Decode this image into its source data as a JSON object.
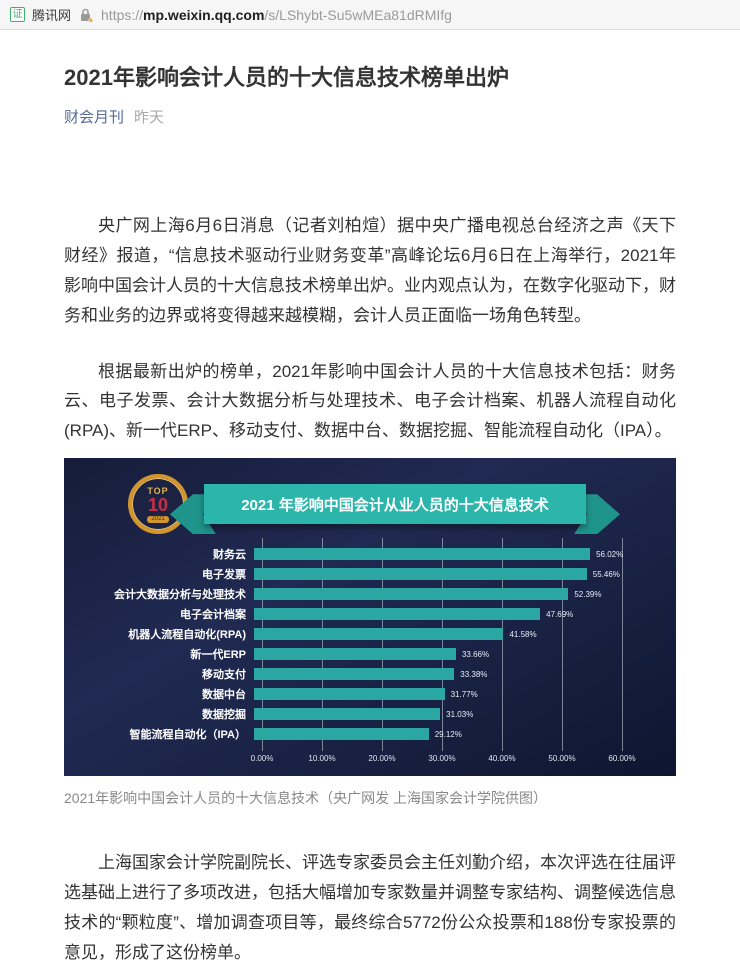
{
  "browser": {
    "site_badge": "证",
    "site_name": "腾讯网",
    "url_scheme": "https://",
    "url_domain": "mp.weixin.qq.com",
    "url_path": "/s/LShybt-Su5wMEa81dRMIfg"
  },
  "article": {
    "title": "2021年影响会计人员的十大信息技术榜单出炉",
    "account": "财会月刊",
    "date": "昨天",
    "paragraph_1": "央广网上海6月6日消息（记者刘柏煊）据中央广播电视总台经济之声《天下财经》报道，“信息技术驱动行业财务变革”高峰论坛6月6日在上海举行，2021年影响中国会计人员的十大信息技术榜单出炉。业内观点认为，在数字化驱动下，财务和业务的边界或将变得越来越模糊，会计人员正面临一场角色转型。",
    "paragraph_2": "根据最新出炉的榜单，2021年影响中国会计人员的十大信息技术包括：财务云、电子发票、会计大数据分析与处理技术、电子会计档案、机器人流程自动化(RPA)、新一代ERP、移动支付、数据中台、数据挖掘、智能流程自动化（IPA）。",
    "caption": "2021年影响中国会计人员的十大信息技术（央广网发 上海国家会计学院供图）",
    "paragraph_3": "上海国家会计学院副院长、评选专家委员会主任刘勤介绍，本次评选在往届评选基础上进行了多项改进，包括大幅增加专家数量并调整专家结构、调整候选信息技术的“颗粒度”、增加调查项目等，最终综合5772份公众投票和188份专家投票的意见，形成了这份榜单。"
  },
  "chart_data": {
    "type": "bar",
    "orientation": "horizontal",
    "title": "2021 年影响中国会计从业人员的十大信息技术",
    "badge": {
      "top": "TOP",
      "number": "10",
      "year": "2021"
    },
    "categories": [
      "财务云",
      "电子发票",
      "会计大数据分析与处理技术",
      "电子会计档案",
      "机器人流程自动化(RPA)",
      "新一代ERP",
      "移动支付",
      "数据中台",
      "数据挖掘",
      "智能流程自动化（IPA）"
    ],
    "values": [
      56.02,
      55.46,
      52.39,
      47.69,
      41.58,
      33.66,
      33.38,
      31.77,
      31.03,
      29.12
    ],
    "value_labels": [
      "56.02%",
      "55.46%",
      "52.39%",
      "47.69%",
      "41.58%",
      "33.66%",
      "33.38%",
      "31.77%",
      "31.03%",
      "29.12%"
    ],
    "x_ticks": [
      "0.00%",
      "10.00%",
      "20.00%",
      "30.00%",
      "40.00%",
      "50.00%",
      "60.00%"
    ],
    "xlim": [
      0,
      60
    ],
    "grid": "on",
    "legend": "none",
    "colors": {
      "bar": "#2aa7a3",
      "ribbon": "#2cb5ab",
      "ribbon_dark": "#1f948b",
      "grid": "rgba(225,234,244,0.5)",
      "axis_text": "#dfe6f0",
      "value_text": "#e6ecf5"
    }
  }
}
